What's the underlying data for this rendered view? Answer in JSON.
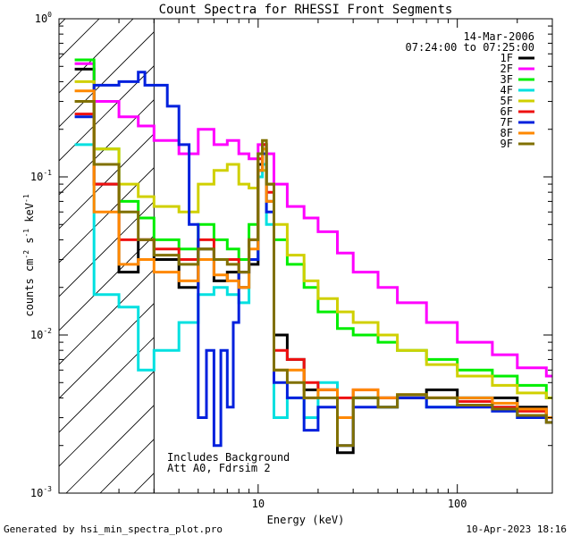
{
  "chart_data": {
    "type": "line",
    "title": "Count Spectra for RHESSI Front Segments",
    "xlabel": "Energy (keV)",
    "ylabel": "counts cm",
    "ylabel_sup1": "-2",
    "ylabel_mid": " s",
    "ylabel_sup2": "-1",
    "ylabel_end": " keV",
    "ylabel_sup3": "-1",
    "xscale": "log",
    "yscale": "log",
    "xlim": [
      1.0,
      300.0
    ],
    "ylim": [
      0.001,
      1.0
    ],
    "x_ticks": [
      {
        "value": 10,
        "label": "10"
      },
      {
        "value": 100,
        "label": "100"
      }
    ],
    "y_ticks": [
      {
        "value": 1.0,
        "base": "10",
        "exp": "0"
      },
      {
        "value": 0.1,
        "base": "10",
        "exp": "-1"
      },
      {
        "value": 0.01,
        "base": "10",
        "exp": "-2"
      },
      {
        "value": 0.001,
        "base": "10",
        "exp": "-3"
      }
    ],
    "date": "14-Mar-2006",
    "time_range": "07:24:00 to 07:25:00",
    "annotation_line1": "Includes Background",
    "annotation_line2": "Att A0, Fdrsim 2",
    "hatch_region_xmax": 3.0,
    "series": [
      {
        "name": "1F",
        "color": "#000000",
        "x": [
          1.2,
          1.5,
          2.0,
          2.5,
          3.0,
          4.0,
          5.0,
          6.0,
          7.0,
          8.0,
          9.0,
          10.0,
          10.5,
          11.0,
          12.0,
          14.0,
          17.0,
          20.0,
          25.0,
          30.0,
          40.0,
          50.0,
          70.0,
          100.0,
          150.0,
          200.0,
          280.0
        ],
        "values": [
          0.48,
          0.09,
          0.025,
          0.04,
          0.03,
          0.02,
          0.035,
          0.022,
          0.025,
          0.02,
          0.028,
          0.12,
          0.16,
          0.07,
          0.01,
          0.007,
          0.0045,
          0.0045,
          0.0018,
          0.004,
          0.004,
          0.004,
          0.0045,
          0.004,
          0.004,
          0.0035,
          0.003
        ]
      },
      {
        "name": "2F",
        "color": "#ff00ff",
        "x": [
          1.2,
          1.5,
          2.0,
          2.5,
          3.0,
          4.0,
          5.0,
          6.0,
          7.0,
          8.0,
          9.0,
          10.0,
          11.0,
          12.0,
          14.0,
          17.0,
          20.0,
          25.0,
          30.0,
          40.0,
          50.0,
          70.0,
          100.0,
          150.0,
          200.0,
          280.0
        ],
        "values": [
          0.52,
          0.3,
          0.24,
          0.21,
          0.17,
          0.14,
          0.2,
          0.16,
          0.17,
          0.14,
          0.13,
          0.16,
          0.14,
          0.09,
          0.065,
          0.055,
          0.045,
          0.033,
          0.025,
          0.02,
          0.016,
          0.012,
          0.009,
          0.0075,
          0.0062,
          0.0055
        ]
      },
      {
        "name": "3F",
        "color": "#00ee00",
        "x": [
          1.2,
          1.5,
          2.0,
          2.5,
          3.0,
          4.0,
          5.0,
          6.0,
          7.0,
          8.0,
          9.0,
          10.0,
          10.5,
          11.0,
          12.0,
          14.0,
          17.0,
          20.0,
          25.0,
          30.0,
          40.0,
          50.0,
          70.0,
          100.0,
          150.0,
          200.0,
          280.0
        ],
        "values": [
          0.55,
          0.15,
          0.07,
          0.055,
          0.04,
          0.035,
          0.05,
          0.04,
          0.035,
          0.03,
          0.05,
          0.14,
          0.15,
          0.09,
          0.04,
          0.028,
          0.02,
          0.014,
          0.011,
          0.01,
          0.009,
          0.008,
          0.007,
          0.006,
          0.0055,
          0.0048,
          0.004
        ]
      },
      {
        "name": "4F",
        "color": "#00e0e0",
        "x": [
          1.2,
          1.5,
          2.0,
          2.5,
          3.0,
          4.0,
          5.0,
          6.0,
          7.0,
          8.0,
          9.0,
          10.0,
          10.5,
          11.0,
          12.0,
          14.0,
          17.0,
          20.0,
          25.0,
          30.0,
          40.0,
          50.0,
          70.0,
          100.0,
          150.0,
          200.0,
          280.0
        ],
        "values": [
          0.16,
          0.018,
          0.015,
          0.006,
          0.008,
          0.012,
          0.018,
          0.02,
          0.018,
          0.016,
          0.03,
          0.1,
          0.12,
          0.05,
          0.003,
          0.004,
          0.003,
          0.005,
          0.003,
          0.004,
          0.0035,
          0.004,
          0.0035,
          0.004,
          0.0035,
          0.003,
          0.003
        ]
      },
      {
        "name": "5F",
        "color": "#d0d000",
        "x": [
          1.2,
          1.5,
          2.0,
          2.5,
          3.0,
          4.0,
          5.0,
          6.0,
          7.0,
          8.0,
          9.0,
          10.0,
          11.0,
          12.0,
          14.0,
          17.0,
          20.0,
          25.0,
          30.0,
          40.0,
          50.0,
          70.0,
          100.0,
          150.0,
          200.0,
          280.0
        ],
        "values": [
          0.4,
          0.15,
          0.09,
          0.075,
          0.065,
          0.06,
          0.09,
          0.11,
          0.12,
          0.09,
          0.085,
          0.11,
          0.09,
          0.05,
          0.032,
          0.022,
          0.017,
          0.014,
          0.012,
          0.01,
          0.008,
          0.0065,
          0.0055,
          0.0048,
          0.0043,
          0.004
        ]
      },
      {
        "name": "6F",
        "color": "#ee1010",
        "x": [
          1.2,
          1.5,
          2.0,
          2.5,
          3.0,
          4.0,
          5.0,
          6.0,
          7.0,
          8.0,
          9.0,
          10.0,
          10.5,
          11.0,
          12.0,
          14.0,
          17.0,
          20.0,
          25.0,
          30.0,
          40.0,
          50.0,
          70.0,
          100.0,
          150.0,
          200.0,
          280.0
        ],
        "values": [
          0.25,
          0.09,
          0.04,
          0.04,
          0.035,
          0.03,
          0.04,
          0.03,
          0.03,
          0.025,
          0.04,
          0.13,
          0.16,
          0.08,
          0.008,
          0.007,
          0.005,
          0.0045,
          0.004,
          0.0045,
          0.004,
          0.004,
          0.004,
          0.0038,
          0.0035,
          0.0033,
          0.003
        ]
      },
      {
        "name": "7F",
        "color": "#0020dd",
        "x": [
          1.2,
          1.5,
          2.0,
          2.5,
          2.7,
          3.0,
          3.5,
          4.0,
          4.5,
          5.0,
          5.5,
          6.0,
          6.5,
          7.0,
          7.5,
          8.0,
          9.0,
          10.0,
          10.5,
          11.0,
          12.0,
          14.0,
          17.0,
          20.0,
          25.0,
          30.0,
          40.0,
          50.0,
          70.0,
          100.0,
          150.0,
          200.0,
          280.0
        ],
        "values": [
          0.24,
          0.38,
          0.4,
          0.46,
          0.38,
          0.38,
          0.28,
          0.16,
          0.05,
          0.003,
          0.008,
          0.002,
          0.008,
          0.0035,
          0.012,
          0.025,
          0.03,
          0.11,
          0.14,
          0.06,
          0.005,
          0.004,
          0.0025,
          0.0035,
          0.002,
          0.0035,
          0.0035,
          0.004,
          0.0035,
          0.0035,
          0.0033,
          0.003,
          0.0028
        ]
      },
      {
        "name": "8F",
        "color": "#ff8800",
        "x": [
          1.2,
          1.5,
          2.0,
          2.5,
          3.0,
          4.0,
          5.0,
          6.0,
          7.0,
          8.0,
          9.0,
          10.0,
          10.5,
          11.0,
          12.0,
          14.0,
          17.0,
          20.0,
          25.0,
          30.0,
          40.0,
          50.0,
          70.0,
          100.0,
          150.0,
          200.0,
          280.0
        ],
        "values": [
          0.35,
          0.06,
          0.028,
          0.03,
          0.025,
          0.022,
          0.03,
          0.024,
          0.022,
          0.02,
          0.035,
          0.11,
          0.15,
          0.07,
          0.006,
          0.006,
          0.004,
          0.0045,
          0.003,
          0.0045,
          0.004,
          0.0042,
          0.004,
          0.004,
          0.0037,
          0.0034,
          0.003
        ]
      },
      {
        "name": "9F",
        "color": "#807000",
        "x": [
          1.2,
          1.5,
          2.0,
          2.5,
          3.0,
          4.0,
          5.0,
          6.0,
          7.0,
          8.0,
          9.0,
          10.0,
          10.5,
          11.0,
          12.0,
          14.0,
          17.0,
          20.0,
          25.0,
          30.0,
          40.0,
          50.0,
          70.0,
          100.0,
          150.0,
          200.0,
          280.0
        ],
        "values": [
          0.3,
          0.12,
          0.06,
          0.04,
          0.032,
          0.028,
          0.035,
          0.03,
          0.028,
          0.025,
          0.04,
          0.14,
          0.17,
          0.09,
          0.006,
          0.005,
          0.004,
          0.004,
          0.002,
          0.004,
          0.0035,
          0.0042,
          0.004,
          0.0036,
          0.0034,
          0.0031,
          0.0028
        ]
      }
    ]
  },
  "footer": {
    "generated_by": "Generated by hsi_min_spectra_plot.pro",
    "generated_at": "10-Apr-2023 18:16"
  }
}
